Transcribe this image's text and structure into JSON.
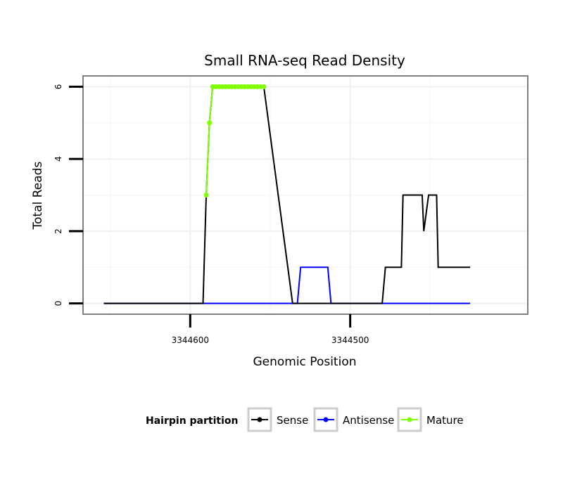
{
  "chart_data": {
    "type": "line",
    "title": "Small RNA-seq Read Density",
    "xlabel": "Genomic Position",
    "ylabel": "Total Reads",
    "x_reversed": true,
    "xlim": [
      3344667,
      3344389
    ],
    "ylim": [
      -0.3,
      6.3
    ],
    "x_ticks": [
      3344600,
      3344500
    ],
    "x_tick_labels": [
      "3344600",
      "3344500"
    ],
    "y_ticks": [
      0,
      2,
      4,
      6
    ],
    "y_tick_labels": [
      "0",
      "2",
      "4",
      "6"
    ],
    "grid": true,
    "legend_position": "bottom",
    "legend_title": "Hairpin partition",
    "series": [
      {
        "name": "Sense",
        "color": "#000000",
        "x": [
          3344654,
          3344592,
          3344590,
          3344588,
          3344586,
          3344584,
          3344582,
          3344580,
          3344578,
          3344576,
          3344574,
          3344572,
          3344570,
          3344568,
          3344566,
          3344564,
          3344562,
          3344560,
          3344558,
          3344556,
          3344554,
          3344536,
          3344534,
          3344480,
          3344478,
          3344468,
          3344467,
          3344455,
          3344454,
          3344451,
          3344450,
          3344446,
          3344445,
          3344440,
          3344439,
          3344425
        ],
        "y": [
          0,
          0,
          3,
          5,
          6,
          6,
          6,
          6,
          6,
          6,
          6,
          6,
          6,
          6,
          6,
          6,
          6,
          6,
          6,
          6,
          6,
          0,
          0,
          0,
          1,
          1,
          3,
          3,
          2,
          3,
          3,
          3,
          1,
          1,
          1,
          1
        ]
      },
      {
        "name": "Antisense",
        "color": "#0000ff",
        "x": [
          3344654,
          3344533,
          3344531,
          3344514,
          3344512,
          3344425
        ],
        "y": [
          0,
          0,
          1,
          1,
          0,
          0
        ]
      },
      {
        "name": "Mature",
        "color": "#7fff00",
        "x": [
          3344590,
          3344588,
          3344586,
          3344584,
          3344582,
          3344580,
          3344578,
          3344576,
          3344574,
          3344572,
          3344570,
          3344568,
          3344566,
          3344564,
          3344562,
          3344560,
          3344558,
          3344556,
          3344554
        ],
        "y": [
          3,
          5,
          6,
          6,
          6,
          6,
          6,
          6,
          6,
          6,
          6,
          6,
          6,
          6,
          6,
          6,
          6,
          6,
          6
        ]
      }
    ]
  }
}
